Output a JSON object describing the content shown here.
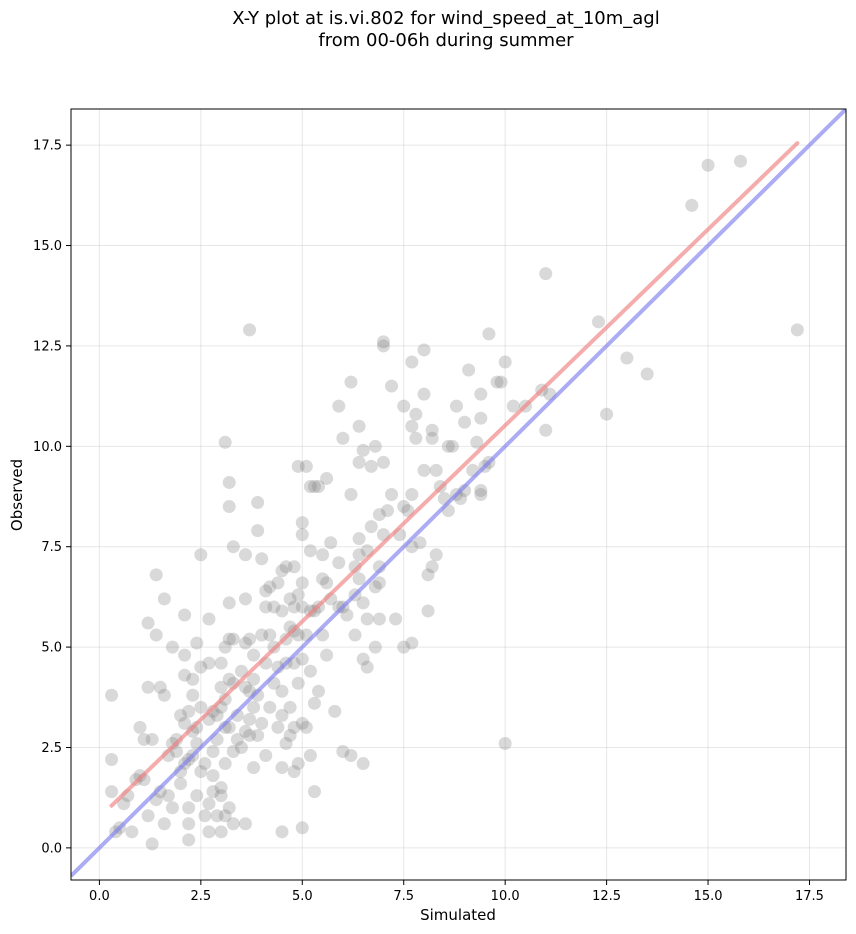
{
  "title": {
    "line1": "X-Y plot at is.vi.802 for wind_speed_at_10m_agl",
    "line2": "from 00-06h during summer"
  },
  "chart_data": {
    "type": "scatter",
    "xlabel": "Simulated",
    "ylabel": "Observed",
    "xlim": [
      -0.7,
      18.4
    ],
    "ylim": [
      -0.8,
      18.4
    ],
    "xticks": [
      "0.0",
      "2.5",
      "5.0",
      "7.5",
      "10.0",
      "12.5",
      "15.0",
      "17.5"
    ],
    "yticks": [
      "0.0",
      "2.5",
      "5.0",
      "7.5",
      "10.0",
      "12.5",
      "15.0",
      "17.5"
    ],
    "grid": true,
    "colors": {
      "points": "#808080",
      "regression_line": "#f08080",
      "identity_line": "#8080f0"
    },
    "regression_line": {
      "x": [
        0.3,
        17.2
      ],
      "y": [
        1.05,
        17.55
      ]
    },
    "identity_line": {
      "x": [
        -0.7,
        18.4
      ],
      "y": [
        -0.7,
        18.4
      ]
    },
    "points": [
      [
        0.3,
        3.8
      ],
      [
        0.3,
        1.4
      ],
      [
        0.3,
        2.2
      ],
      [
        0.4,
        0.4
      ],
      [
        0.5,
        0.5
      ],
      [
        0.6,
        1.1
      ],
      [
        0.7,
        1.3
      ],
      [
        0.8,
        0.4
      ],
      [
        0.9,
        1.7
      ],
      [
        1.0,
        1.8
      ],
      [
        1.0,
        3.0
      ],
      [
        1.1,
        1.7
      ],
      [
        1.1,
        2.7
      ],
      [
        1.2,
        4.0
      ],
      [
        1.2,
        5.6
      ],
      [
        1.2,
        0.8
      ],
      [
        1.3,
        0.1
      ],
      [
        1.3,
        2.7
      ],
      [
        1.4,
        6.8
      ],
      [
        1.4,
        5.3
      ],
      [
        1.4,
        1.2
      ],
      [
        1.5,
        4.0
      ],
      [
        1.5,
        1.4
      ],
      [
        1.6,
        6.2
      ],
      [
        1.6,
        3.8
      ],
      [
        1.6,
        0.6
      ],
      [
        1.7,
        2.3
      ],
      [
        1.7,
        1.3
      ],
      [
        1.8,
        5.0
      ],
      [
        1.8,
        2.6
      ],
      [
        1.8,
        1.0
      ],
      [
        1.9,
        2.7
      ],
      [
        1.9,
        2.4
      ],
      [
        2.0,
        3.3
      ],
      [
        2.0,
        1.6
      ],
      [
        2.0,
        1.9
      ],
      [
        2.1,
        5.8
      ],
      [
        2.1,
        4.8
      ],
      [
        2.1,
        4.3
      ],
      [
        2.1,
        3.1
      ],
      [
        2.1,
        2.1
      ],
      [
        2.2,
        3.4
      ],
      [
        2.2,
        2.2
      ],
      [
        2.2,
        1.0
      ],
      [
        2.2,
        0.2
      ],
      [
        2.2,
        0.6
      ],
      [
        2.3,
        4.2
      ],
      [
        2.3,
        3.8
      ],
      [
        2.3,
        2.9
      ],
      [
        2.3,
        2.3
      ],
      [
        2.4,
        5.1
      ],
      [
        2.4,
        3.0
      ],
      [
        2.4,
        2.6
      ],
      [
        2.4,
        1.3
      ],
      [
        2.5,
        7.3
      ],
      [
        2.5,
        4.5
      ],
      [
        2.5,
        3.5
      ],
      [
        2.5,
        1.9
      ],
      [
        2.6,
        2.1
      ],
      [
        2.6,
        0.8
      ],
      [
        2.7,
        5.7
      ],
      [
        2.7,
        4.6
      ],
      [
        2.7,
        3.2
      ],
      [
        2.7,
        1.1
      ],
      [
        2.7,
        0.4
      ],
      [
        2.8,
        3.4
      ],
      [
        2.8,
        2.4
      ],
      [
        2.8,
        1.8
      ],
      [
        2.8,
        1.4
      ],
      [
        2.9,
        3.3
      ],
      [
        2.9,
        2.7
      ],
      [
        2.9,
        0.8
      ],
      [
        3.0,
        4.6
      ],
      [
        3.0,
        3.5
      ],
      [
        3.0,
        4.0
      ],
      [
        3.0,
        1.5
      ],
      [
        3.0,
        1.3
      ],
      [
        3.0,
        0.4
      ],
      [
        3.1,
        10.1
      ],
      [
        3.1,
        5.0
      ],
      [
        3.1,
        3.7
      ],
      [
        3.1,
        3.0
      ],
      [
        3.1,
        2.1
      ],
      [
        3.1,
        0.8
      ],
      [
        3.2,
        9.1
      ],
      [
        3.2,
        8.5
      ],
      [
        3.2,
        6.1
      ],
      [
        3.2,
        5.2
      ],
      [
        3.2,
        4.2
      ],
      [
        3.2,
        3.0
      ],
      [
        3.2,
        1.0
      ],
      [
        3.3,
        7.5
      ],
      [
        3.3,
        5.2
      ],
      [
        3.3,
        4.1
      ],
      [
        3.3,
        2.4
      ],
      [
        3.3,
        0.6
      ],
      [
        3.4,
        3.3
      ],
      [
        3.4,
        2.7
      ],
      [
        3.5,
        4.4
      ],
      [
        3.5,
        2.5
      ],
      [
        3.6,
        7.3
      ],
      [
        3.6,
        6.2
      ],
      [
        3.6,
        5.1
      ],
      [
        3.6,
        4.0
      ],
      [
        3.6,
        2.9
      ],
      [
        3.6,
        0.6
      ],
      [
        3.7,
        12.9
      ],
      [
        3.7,
        5.2
      ],
      [
        3.7,
        3.9
      ],
      [
        3.7,
        3.2
      ],
      [
        3.7,
        2.8
      ],
      [
        3.8,
        4.8
      ],
      [
        3.8,
        4.2
      ],
      [
        3.8,
        3.5
      ],
      [
        3.8,
        2.0
      ],
      [
        3.9,
        8.6
      ],
      [
        3.9,
        7.9
      ],
      [
        3.9,
        3.8
      ],
      [
        3.9,
        2.8
      ],
      [
        4.0,
        7.2
      ],
      [
        4.0,
        5.3
      ],
      [
        4.0,
        3.1
      ],
      [
        4.1,
        6.4
      ],
      [
        4.1,
        6.0
      ],
      [
        4.1,
        4.6
      ],
      [
        4.1,
        2.3
      ],
      [
        4.2,
        6.5
      ],
      [
        4.2,
        5.3
      ],
      [
        4.2,
        3.5
      ],
      [
        4.3,
        6.0
      ],
      [
        4.3,
        5.0
      ],
      [
        4.3,
        4.1
      ],
      [
        4.4,
        6.6
      ],
      [
        4.4,
        4.5
      ],
      [
        4.4,
        3.0
      ],
      [
        4.5,
        6.9
      ],
      [
        4.5,
        5.9
      ],
      [
        4.5,
        3.9
      ],
      [
        4.5,
        3.3
      ],
      [
        4.5,
        2.0
      ],
      [
        4.5,
        0.4
      ],
      [
        4.6,
        7.0
      ],
      [
        4.6,
        5.2
      ],
      [
        4.6,
        4.6
      ],
      [
        4.6,
        2.6
      ],
      [
        4.7,
        6.2
      ],
      [
        4.7,
        5.5
      ],
      [
        4.7,
        3.5
      ],
      [
        4.7,
        2.8
      ],
      [
        4.8,
        7.0
      ],
      [
        4.8,
        6.0
      ],
      [
        4.8,
        5.4
      ],
      [
        4.8,
        4.6
      ],
      [
        4.8,
        3.0
      ],
      [
        4.8,
        1.9
      ],
      [
        4.9,
        9.5
      ],
      [
        4.9,
        6.3
      ],
      [
        4.9,
        5.3
      ],
      [
        4.9,
        4.1
      ],
      [
        4.9,
        2.1
      ],
      [
        5.0,
        8.1
      ],
      [
        5.0,
        7.8
      ],
      [
        5.0,
        6.6
      ],
      [
        5.0,
        6.0
      ],
      [
        5.0,
        4.7
      ],
      [
        5.0,
        3.1
      ],
      [
        5.0,
        0.5
      ],
      [
        5.1,
        9.5
      ],
      [
        5.1,
        5.3
      ],
      [
        5.1,
        3.0
      ],
      [
        5.2,
        9.0
      ],
      [
        5.2,
        7.4
      ],
      [
        5.2,
        5.9
      ],
      [
        5.2,
        4.4
      ],
      [
        5.2,
        2.3
      ],
      [
        5.3,
        9.0
      ],
      [
        5.3,
        5.9
      ],
      [
        5.3,
        3.6
      ],
      [
        5.3,
        1.4
      ],
      [
        5.4,
        9.0
      ],
      [
        5.4,
        6.0
      ],
      [
        5.4,
        3.9
      ],
      [
        5.5,
        7.3
      ],
      [
        5.5,
        6.7
      ],
      [
        5.5,
        5.3
      ],
      [
        5.6,
        9.2
      ],
      [
        5.6,
        6.6
      ],
      [
        5.6,
        4.8
      ],
      [
        5.7,
        7.6
      ],
      [
        5.7,
        6.2
      ],
      [
        5.8,
        3.4
      ],
      [
        5.9,
        11.0
      ],
      [
        5.9,
        7.1
      ],
      [
        5.9,
        6.0
      ],
      [
        6.0,
        10.2
      ],
      [
        6.0,
        6.0
      ],
      [
        6.0,
        2.4
      ],
      [
        6.1,
        5.8
      ],
      [
        6.2,
        11.6
      ],
      [
        6.2,
        8.8
      ],
      [
        6.2,
        2.3
      ],
      [
        6.3,
        7.0
      ],
      [
        6.3,
        6.3
      ],
      [
        6.3,
        5.3
      ],
      [
        6.4,
        10.5
      ],
      [
        6.4,
        9.6
      ],
      [
        6.4,
        7.7
      ],
      [
        6.4,
        7.3
      ],
      [
        6.4,
        6.7
      ],
      [
        6.5,
        9.9
      ],
      [
        6.5,
        6.1
      ],
      [
        6.5,
        4.7
      ],
      [
        6.5,
        2.1
      ],
      [
        6.6,
        7.4
      ],
      [
        6.6,
        5.7
      ],
      [
        6.6,
        4.5
      ],
      [
        6.7,
        9.5
      ],
      [
        6.7,
        8.0
      ],
      [
        6.8,
        10.0
      ],
      [
        6.8,
        6.5
      ],
      [
        6.8,
        5.0
      ],
      [
        6.9,
        8.3
      ],
      [
        6.9,
        7.0
      ],
      [
        6.9,
        6.6
      ],
      [
        6.9,
        5.7
      ],
      [
        7.0,
        12.5
      ],
      [
        7.0,
        12.6
      ],
      [
        7.0,
        9.6
      ],
      [
        7.0,
        7.8
      ],
      [
        7.1,
        8.4
      ],
      [
        7.2,
        11.5
      ],
      [
        7.2,
        8.8
      ],
      [
        7.3,
        5.7
      ],
      [
        7.4,
        7.8
      ],
      [
        7.5,
        11.0
      ],
      [
        7.5,
        8.5
      ],
      [
        7.5,
        5.0
      ],
      [
        7.6,
        8.4
      ],
      [
        7.7,
        12.1
      ],
      [
        7.7,
        10.5
      ],
      [
        7.7,
        8.8
      ],
      [
        7.7,
        7.5
      ],
      [
        7.7,
        5.1
      ],
      [
        7.8,
        10.8
      ],
      [
        7.8,
        10.2
      ],
      [
        7.9,
        7.6
      ],
      [
        8.0,
        12.4
      ],
      [
        8.0,
        11.3
      ],
      [
        8.0,
        9.4
      ],
      [
        8.1,
        6.8
      ],
      [
        8.1,
        5.9
      ],
      [
        8.2,
        10.4
      ],
      [
        8.2,
        10.2
      ],
      [
        8.2,
        7.0
      ],
      [
        8.3,
        9.4
      ],
      [
        8.3,
        7.3
      ],
      [
        8.4,
        9.0
      ],
      [
        8.5,
        8.7
      ],
      [
        8.6,
        10.0
      ],
      [
        8.6,
        8.4
      ],
      [
        8.7,
        10.0
      ],
      [
        8.8,
        11.0
      ],
      [
        8.8,
        8.8
      ],
      [
        8.9,
        8.7
      ],
      [
        9.0,
        10.6
      ],
      [
        9.0,
        8.9
      ],
      [
        9.1,
        11.9
      ],
      [
        9.2,
        9.4
      ],
      [
        9.3,
        10.1
      ],
      [
        9.4,
        11.3
      ],
      [
        9.4,
        10.7
      ],
      [
        9.4,
        8.9
      ],
      [
        9.4,
        8.8
      ],
      [
        9.5,
        9.5
      ],
      [
        9.6,
        12.8
      ],
      [
        9.6,
        9.6
      ],
      [
        9.8,
        11.6
      ],
      [
        9.9,
        11.6
      ],
      [
        10.0,
        12.1
      ],
      [
        10.0,
        2.6
      ],
      [
        10.2,
        11.0
      ],
      [
        10.5,
        11.0
      ],
      [
        10.9,
        11.4
      ],
      [
        11.0,
        14.3
      ],
      [
        11.0,
        10.4
      ],
      [
        11.1,
        11.3
      ],
      [
        12.3,
        13.1
      ],
      [
        12.5,
        10.8
      ],
      [
        13.0,
        12.2
      ],
      [
        13.5,
        11.8
      ],
      [
        14.6,
        16.0
      ],
      [
        15.0,
        17.0
      ],
      [
        15.8,
        17.1
      ],
      [
        17.2,
        12.9
      ]
    ]
  }
}
